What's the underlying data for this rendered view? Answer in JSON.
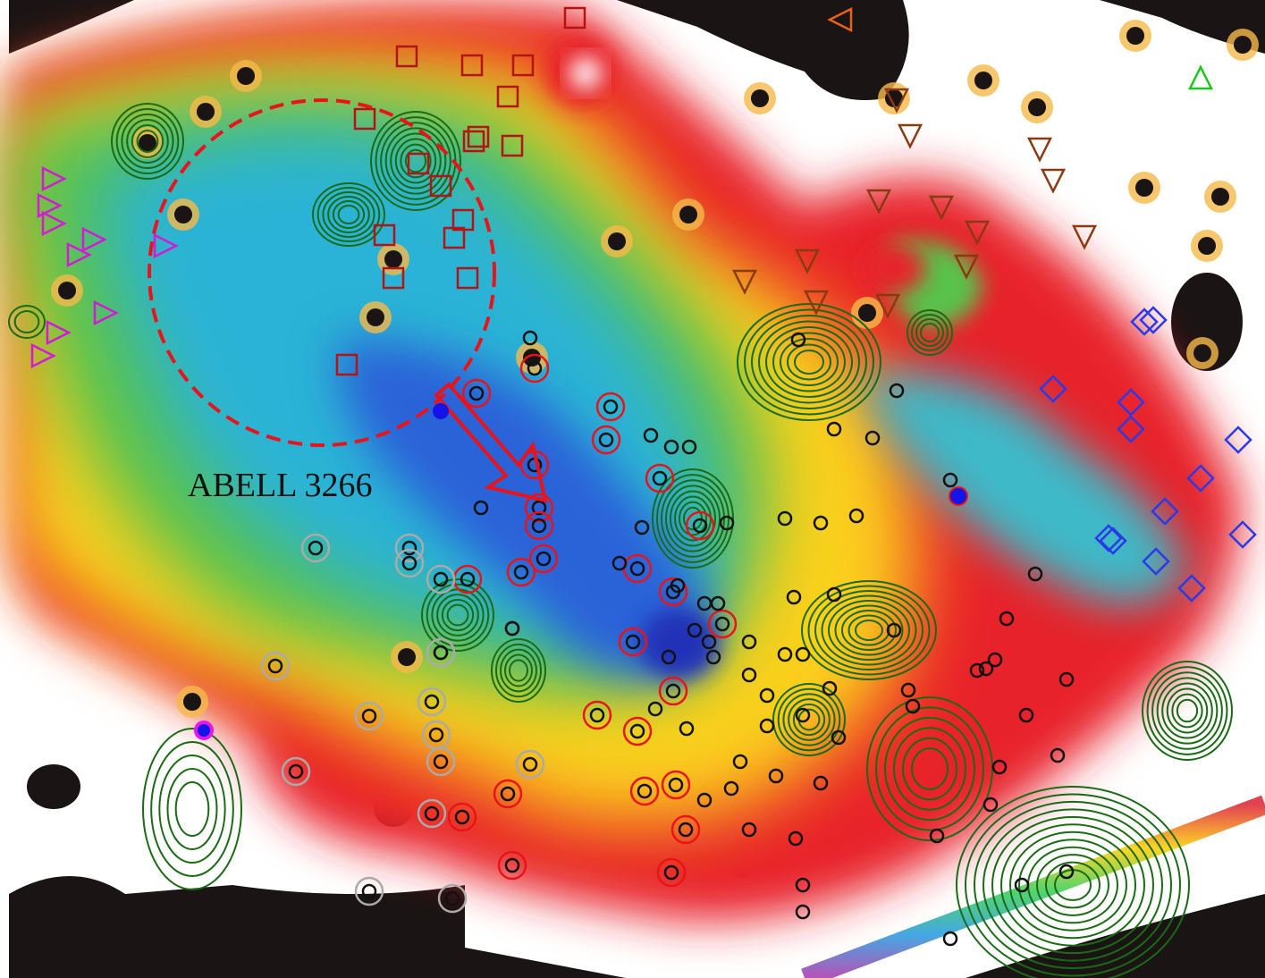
{
  "label": "ABELL 3266"
}
